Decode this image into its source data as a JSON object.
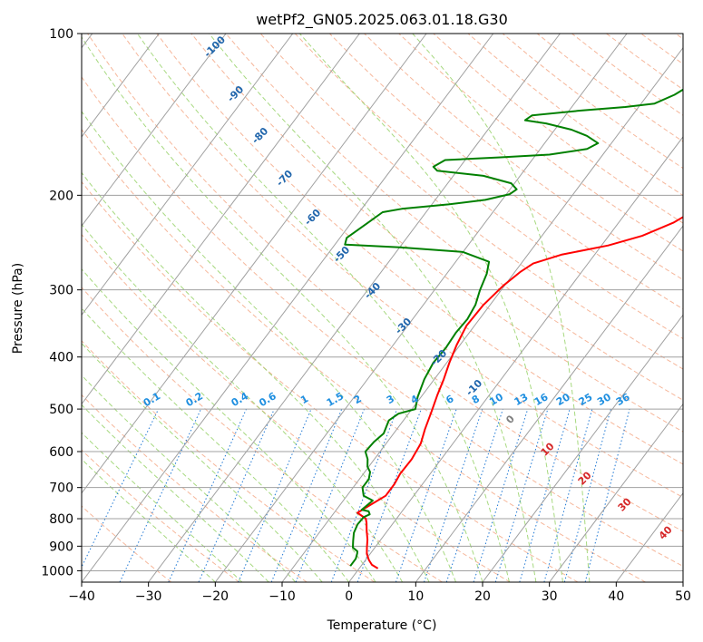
{
  "chart_data": {
    "type": "line",
    "title": "wetPf2_GN05.2025.063.01.18.G30",
    "xlabel": "Temperature (°C)",
    "ylabel": "Pressure (hPa)",
    "xlim": [
      -40,
      50
    ],
    "ylim": [
      1050,
      100
    ],
    "y_scale": "log",
    "grid": true,
    "x_ticks": [
      -40,
      -30,
      -20,
      -10,
      0,
      10,
      20,
      30,
      40,
      50
    ],
    "y_ticks": [
      100,
      200,
      300,
      400,
      500,
      600,
      700,
      800,
      900,
      1000
    ],
    "series": [
      {
        "color": "#ff0000",
        "points": [
          [
            2.8,
            990
          ],
          [
            1.5,
            975
          ],
          [
            0.5,
            955
          ],
          [
            -0.5,
            930
          ],
          [
            -1.2,
            905
          ],
          [
            -2,
            875
          ],
          [
            -3.2,
            840
          ],
          [
            -4,
            815
          ],
          [
            -4.6,
            800
          ],
          [
            -6.5,
            780
          ],
          [
            -5.5,
            755
          ],
          [
            -4.2,
            725
          ],
          [
            -4.2,
            690
          ],
          [
            -4.5,
            660
          ],
          [
            -4.4,
            620
          ],
          [
            -4.8,
            580
          ],
          [
            -5.8,
            545
          ],
          [
            -6.8,
            505
          ],
          [
            -7.8,
            470
          ],
          [
            -8.6,
            440
          ],
          [
            -9.6,
            410
          ],
          [
            -10.5,
            380
          ],
          [
            -11.2,
            350
          ],
          [
            -11,
            320
          ],
          [
            -10.2,
            295
          ],
          [
            -9.2,
            278
          ],
          [
            -8.2,
            268
          ],
          [
            -5,
            258
          ],
          [
            1,
            248
          ],
          [
            5,
            238
          ],
          [
            8.2,
            225
          ],
          [
            10.2,
            212
          ],
          [
            11.5,
            200
          ],
          [
            13.5,
            190
          ],
          [
            16,
            180
          ],
          [
            18,
            170
          ],
          [
            20,
            160
          ],
          [
            21.8,
            150
          ],
          [
            24,
            142
          ],
          [
            26,
            135
          ],
          [
            27.2,
            128
          ],
          [
            28.2,
            122
          ],
          [
            29.8,
            116
          ],
          [
            31.2,
            110
          ],
          [
            32.8,
            104
          ],
          [
            33.5,
            100
          ]
        ]
      },
      {
        "color": "#008000",
        "points": [
          [
            -1.6,
            980
          ],
          [
            -1.6,
            950
          ],
          [
            -2,
            928
          ],
          [
            -2.2,
            920
          ],
          [
            -3.3,
            905
          ],
          [
            -4,
            880
          ],
          [
            -4.8,
            850
          ],
          [
            -5.2,
            820
          ],
          [
            -5.1,
            795
          ],
          [
            -4.5,
            785
          ],
          [
            -5,
            775
          ],
          [
            -6.2,
            770
          ],
          [
            -5.6,
            740
          ],
          [
            -7.5,
            725
          ],
          [
            -8.6,
            700
          ],
          [
            -8.6,
            675
          ],
          [
            -9.2,
            655
          ],
          [
            -10.2,
            640
          ],
          [
            -11,
            620
          ],
          [
            -12.2,
            600
          ],
          [
            -12,
            575
          ],
          [
            -11.5,
            555
          ],
          [
            -12.2,
            525
          ],
          [
            -11.5,
            510
          ],
          [
            -9.5,
            500
          ],
          [
            -10.5,
            475
          ],
          [
            -11.5,
            440
          ],
          [
            -12,
            410
          ],
          [
            -11.8,
            385
          ],
          [
            -12,
            360
          ],
          [
            -11.8,
            340
          ],
          [
            -12.2,
            320
          ],
          [
            -13.2,
            300
          ],
          [
            -14,
            280
          ],
          [
            -15,
            266
          ],
          [
            -20,
            255
          ],
          [
            -30,
            250
          ],
          [
            -38.5,
            247
          ],
          [
            -39,
            240
          ],
          [
            -37.5,
            225
          ],
          [
            -36.5,
            215
          ],
          [
            -34,
            212
          ],
          [
            -27.5,
            208
          ],
          [
            -22.5,
            204
          ],
          [
            -19.5,
            199
          ],
          [
            -19,
            195
          ],
          [
            -20.5,
            190
          ],
          [
            -25.5,
            184
          ],
          [
            -33,
            180
          ],
          [
            -34,
            177
          ],
          [
            -33,
            172
          ],
          [
            -25,
            170
          ],
          [
            -18,
            168
          ],
          [
            -13,
            164
          ],
          [
            -12,
            160
          ],
          [
            -14.5,
            155
          ],
          [
            -17.5,
            151
          ],
          [
            -22,
            147
          ],
          [
            -25.5,
            145
          ],
          [
            -25,
            142
          ],
          [
            -18,
            139
          ],
          [
            -12,
            137
          ],
          [
            -8,
            135
          ],
          [
            -6,
            130
          ],
          [
            -4,
            122
          ],
          [
            -2.5,
            115
          ],
          [
            -1,
            110
          ],
          [
            0.5,
            105
          ],
          [
            1.5,
            100
          ]
        ]
      }
    ],
    "isotherm_labels": [
      "-100",
      "-90",
      "-80",
      "-70",
      "-60",
      "-50",
      "-40",
      "-30",
      "-20",
      "-10"
    ],
    "mixing_ratio_labels": [
      "0.1",
      "0.2",
      "0.4",
      "0.6",
      "1",
      "1.5",
      "2",
      "3",
      "4",
      "6",
      "8",
      "10",
      "13",
      "16",
      "20",
      "25",
      "30",
      "36"
    ],
    "theta_e_labels": [
      "0",
      "10",
      "20",
      "30",
      "40"
    ]
  }
}
